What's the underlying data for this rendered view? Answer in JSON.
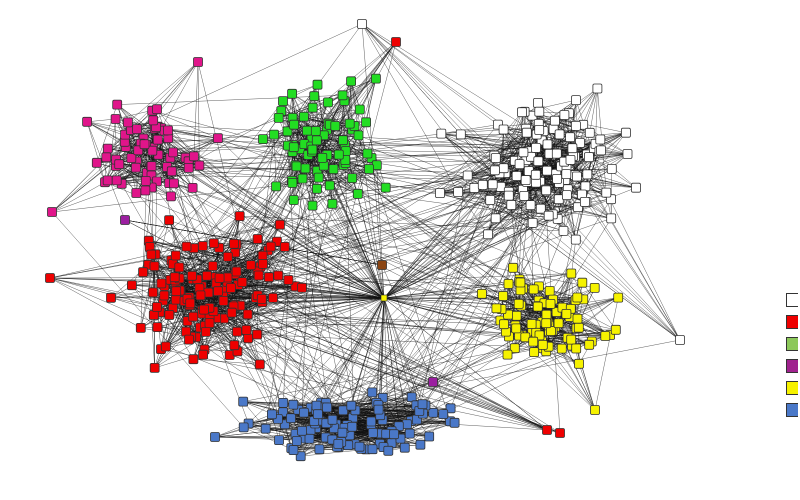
{
  "colors": {
    "community_white": "#ffffff",
    "community_red": "#ee0000",
    "community_green": "#22dd22",
    "community_magenta": "#e0158a",
    "community_yellow": "#f6f200",
    "community_blue": "#4a78c8",
    "bridge_brown": "#8b4513",
    "bridge_purple": "#9b1fa0",
    "edge": "#111111",
    "node_border": "#333333"
  },
  "legend": {
    "entries": [
      {
        "color": "#ffffff"
      },
      {
        "color": "#ee0000"
      },
      {
        "color": "#8cc85a"
      },
      {
        "color": "#a0228e"
      },
      {
        "color": "#f6f200"
      },
      {
        "color": "#4a78c8"
      }
    ]
  }
}
